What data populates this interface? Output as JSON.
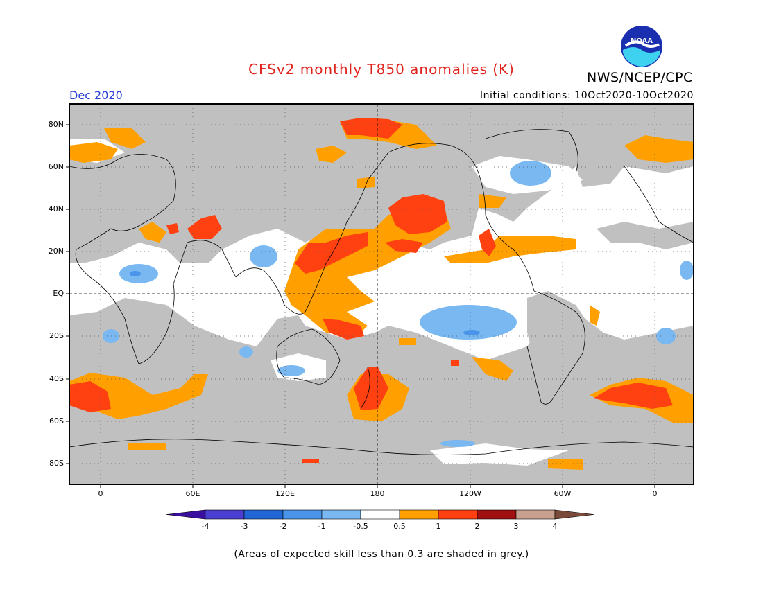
{
  "header": {
    "title": "CFSv2 monthly T850 anomalies (K)",
    "organization": "NWS/NCEP/CPC",
    "valid_month": "Dec 2020",
    "initial_conditions": "Initial conditions: 10Oct2020-10Oct2020",
    "logo_text": "NOAA"
  },
  "map": {
    "lat_ticks": [
      "80N",
      "60N",
      "40N",
      "20N",
      "EQ",
      "20S",
      "40S",
      "60S",
      "80S"
    ],
    "lon_ticks": [
      "0",
      "60E",
      "120E",
      "180",
      "120W",
      "60W",
      "0"
    ],
    "mask_color": "#c0c0c0",
    "ocean_color": "#ffffff"
  },
  "colorbar": {
    "labels": [
      "-4",
      "-3",
      "-2",
      "-1",
      "-0.5",
      "0.5",
      "1",
      "2",
      "3",
      "4"
    ],
    "colors": [
      "#3a0fa0",
      "#4a3fd0",
      "#2166d6",
      "#4a95ea",
      "#7ab8f2",
      "#ffffff",
      "#ffa000",
      "#ff4010",
      "#a01010",
      "#c8a090",
      "#7a4a3a"
    ]
  },
  "footnote": "(Areas of expected skill less than 0.3 are shaded in grey.)"
}
